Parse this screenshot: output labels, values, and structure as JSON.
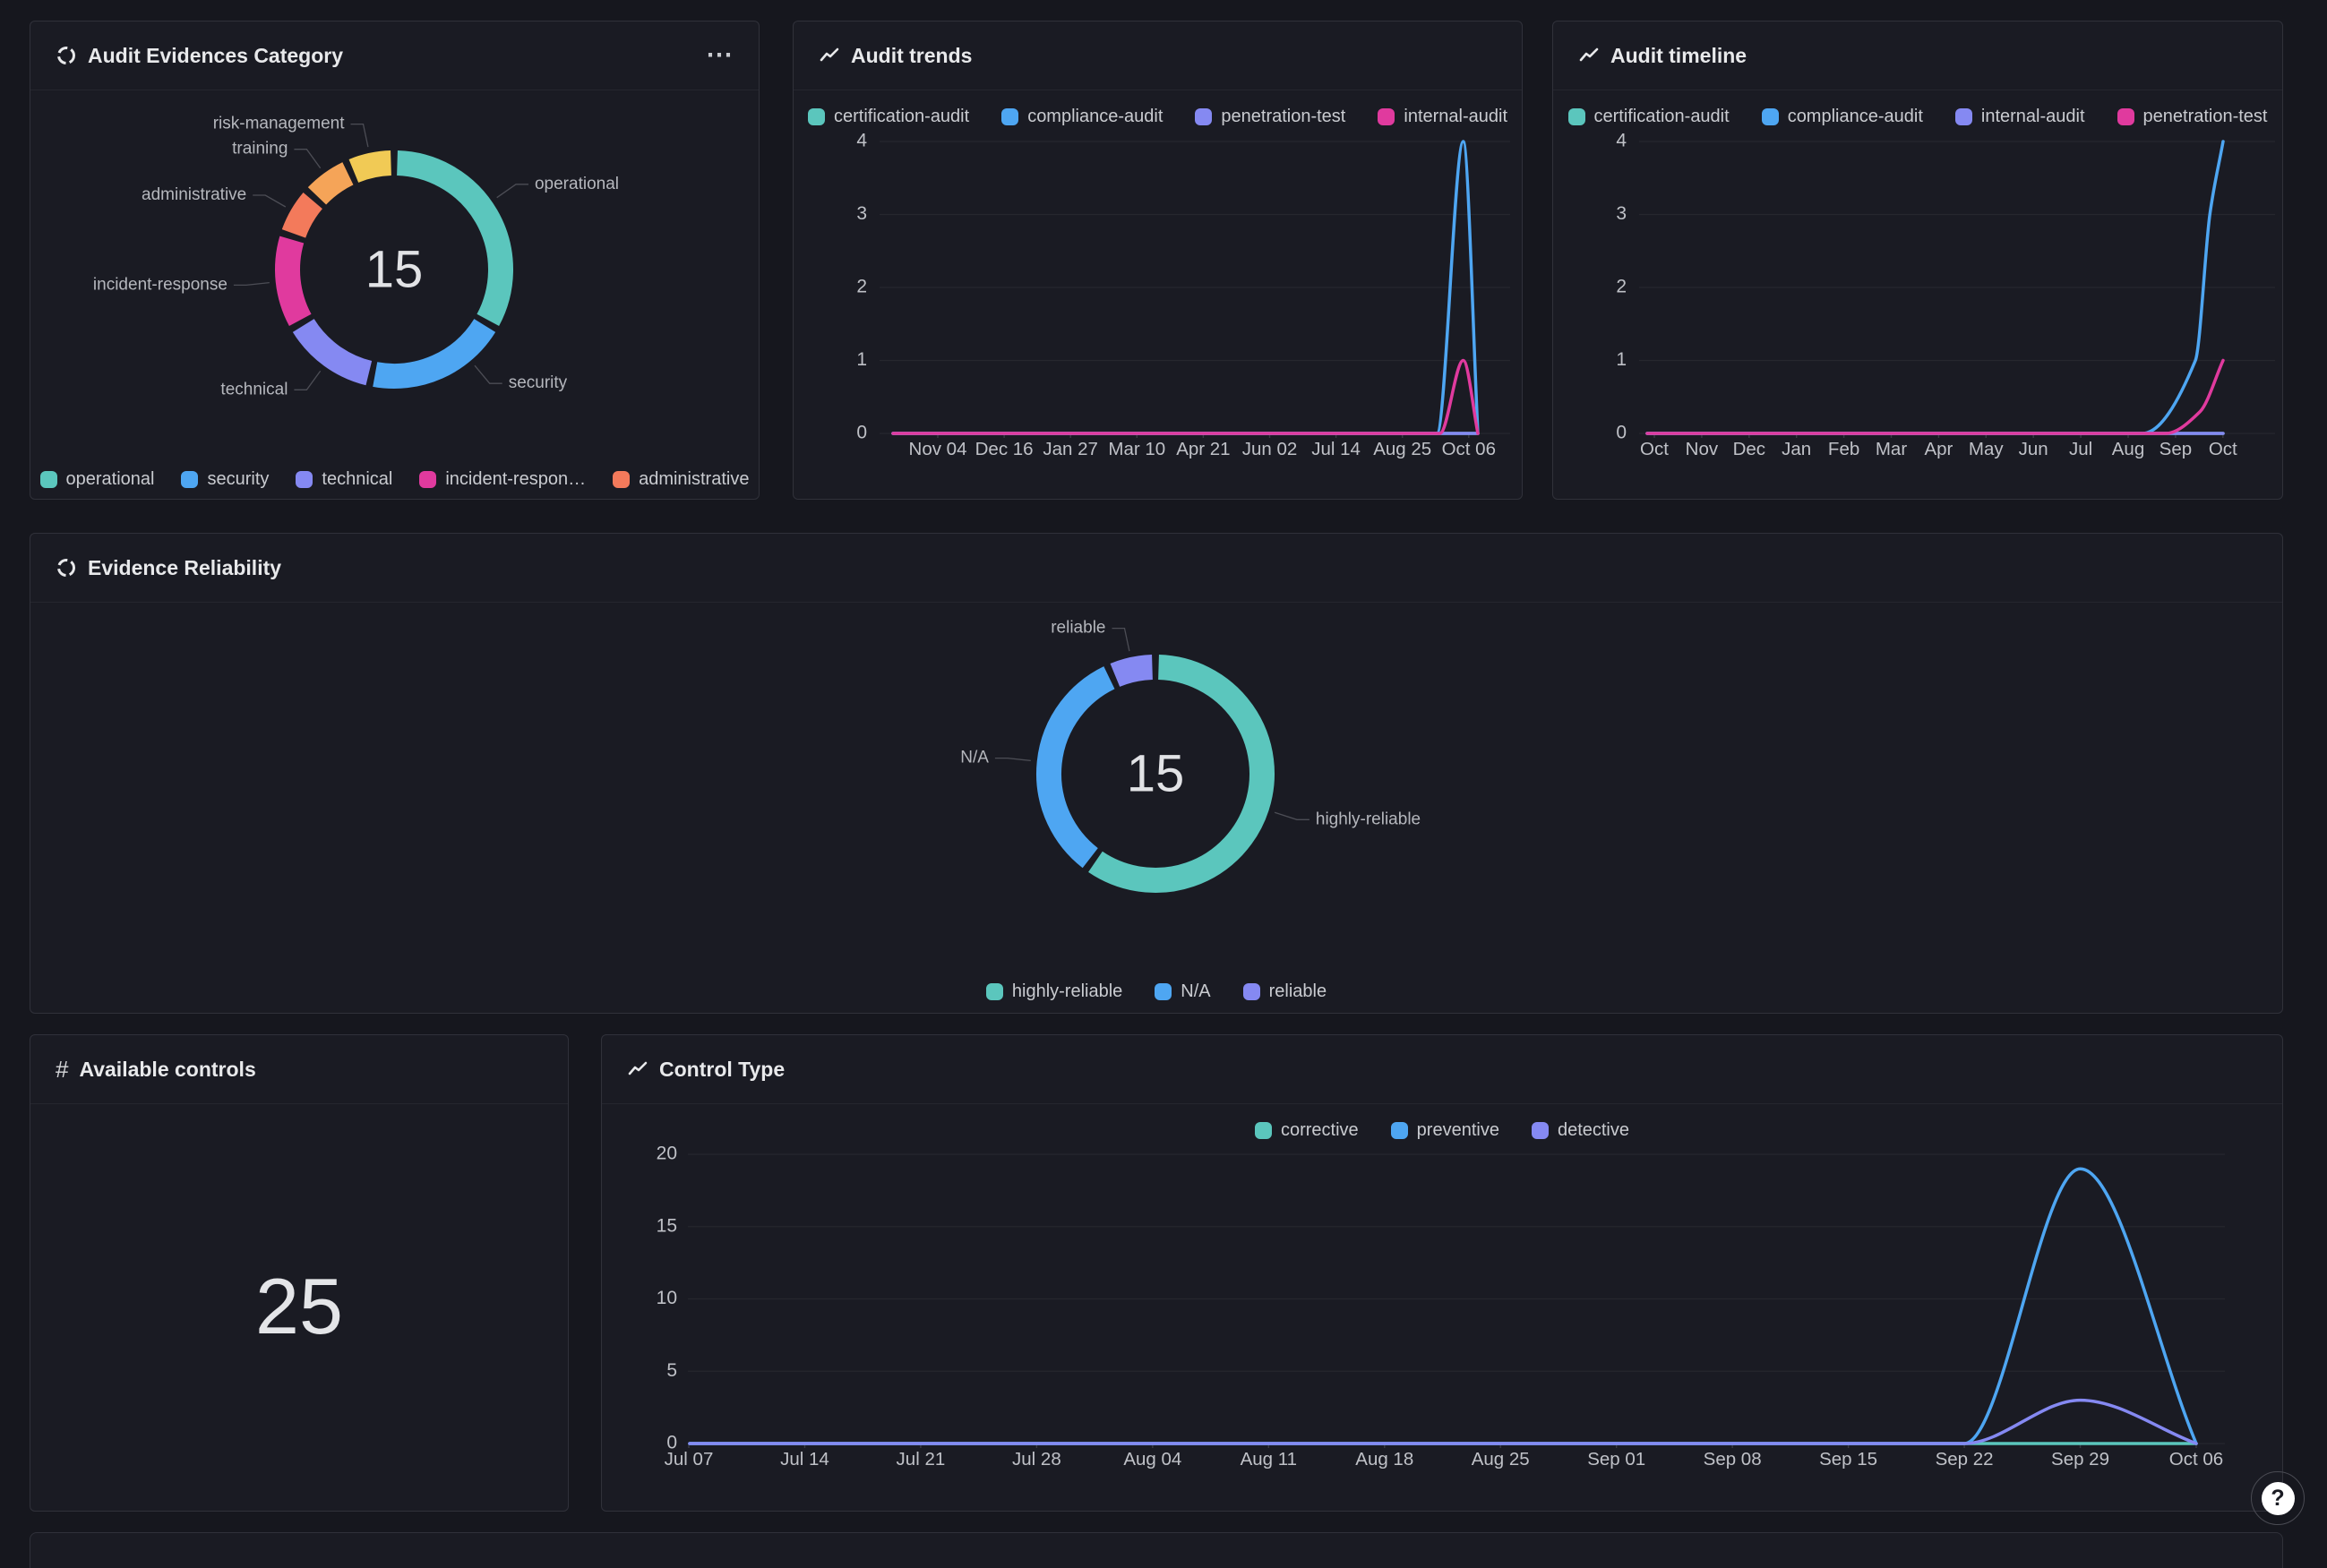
{
  "page": {
    "background": "#16171E",
    "help_icon": "?"
  },
  "colors": {
    "teal": "#5BC6BD",
    "blue": "#4EA6F2",
    "purple": "#8589F2",
    "magenta": "#E03A9E",
    "orangered": "#F37A5B",
    "orange": "#F5A458",
    "yellow": "#F1CA55",
    "grid": "#26272E",
    "axis_label": "#BFC1C7",
    "donut_label": "#B5B7BD",
    "leader_line": "#4C4D55",
    "title": "#E8E9EB",
    "value_text": "#E2E3E6"
  },
  "panels": {
    "audit_evidences_category": {
      "title": "Audit Evidences Category",
      "menu_icon": "⋯"
    },
    "audit_trends": {
      "title": "Audit trends"
    },
    "audit_timeline": {
      "title": "Audit timeline"
    },
    "evidence_reliability": {
      "title": "Evidence Reliability"
    },
    "available_controls": {
      "title": "Available controls",
      "hash_icon": "#"
    },
    "control_type": {
      "title": "Control Type"
    }
  },
  "chart_data": [
    {
      "id": "audit-evidences-category",
      "type": "pie",
      "title": "Audit Evidences Category",
      "total": "15",
      "slices": [
        {
          "label": "operational",
          "value": 5,
          "color": "#5BC6BD"
        },
        {
          "label": "security",
          "value": 3,
          "color": "#4EA6F2"
        },
        {
          "label": "technical",
          "value": 2,
          "color": "#8589F2"
        },
        {
          "label": "incident-response",
          "value": 2,
          "color": "#E03A9E"
        },
        {
          "label": "administrative",
          "value": 1,
          "color": "#F37A5B"
        },
        {
          "label": "training",
          "value": 1,
          "color": "#F5A458"
        },
        {
          "label": "risk-management",
          "value": 1,
          "color": "#F1CA55"
        }
      ],
      "legend": [
        {
          "label": "operational",
          "color": "#5BC6BD"
        },
        {
          "label": "security",
          "color": "#4EA6F2"
        },
        {
          "label": "technical",
          "color": "#8589F2"
        },
        {
          "label": "incident-respon…",
          "color": "#E03A9E"
        },
        {
          "label": "administrative",
          "color": "#F37A5B"
        }
      ]
    },
    {
      "id": "audit-trends",
      "type": "line",
      "title": "Audit trends",
      "x_ticks": [
        "Nov 04",
        "Dec 16",
        "Jan 27",
        "Mar 10",
        "Apr 21",
        "Jun 02",
        "Jul 14",
        "Aug 25",
        "Oct 06"
      ],
      "y_ticks": [
        0,
        1,
        2,
        3,
        4
      ],
      "ylim": [
        0,
        4
      ],
      "legend": [
        {
          "label": "certification-audit",
          "color": "#5BC6BD"
        },
        {
          "label": "compliance-audit",
          "color": "#4EA6F2"
        },
        {
          "label": "penetration-test",
          "color": "#8589F2"
        },
        {
          "label": "internal-audit",
          "color": "#E03A9E"
        }
      ],
      "series": [
        {
          "name": "certification-audit",
          "color": "#5BC6BD",
          "points": [
            [
              0,
              0
            ],
            [
              1,
              0
            ]
          ]
        },
        {
          "name": "compliance-audit",
          "color": "#4EA6F2",
          "points": [
            [
              0,
              0
            ],
            [
              0.93,
              0
            ],
            [
              0.975,
              4
            ],
            [
              1,
              0
            ]
          ]
        },
        {
          "name": "penetration-test",
          "color": "#8589F2",
          "points": [
            [
              0,
              0
            ],
            [
              1,
              0
            ]
          ]
        },
        {
          "name": "internal-audit",
          "color": "#E03A9E",
          "points": [
            [
              0,
              0
            ],
            [
              0.935,
              0
            ],
            [
              0.975,
              1
            ],
            [
              1,
              0
            ]
          ]
        }
      ],
      "note": "all series flat at 0; compliance-audit spikes to 4 and internal-audit to 1 just before Oct 06"
    },
    {
      "id": "audit-timeline",
      "type": "line",
      "title": "Audit timeline",
      "x_ticks": [
        "Oct",
        "Nov",
        "Dec",
        "Jan",
        "Feb",
        "Mar",
        "Apr",
        "May",
        "Jun",
        "Jul",
        "Aug",
        "Sep",
        "Oct"
      ],
      "y_ticks": [
        0,
        1,
        2,
        3,
        4
      ],
      "ylim": [
        0,
        4
      ],
      "legend": [
        {
          "label": "certification-audit",
          "color": "#5BC6BD"
        },
        {
          "label": "compliance-audit",
          "color": "#4EA6F2"
        },
        {
          "label": "internal-audit",
          "color": "#8589F2"
        },
        {
          "label": "penetration-test",
          "color": "#E03A9E"
        }
      ],
      "series": [
        {
          "name": "certification-audit",
          "color": "#5BC6BD",
          "points": [
            [
              0,
              0
            ],
            [
              1,
              0
            ]
          ]
        },
        {
          "name": "internal-audit",
          "color": "#8589F2",
          "points": [
            [
              0,
              0
            ],
            [
              1,
              0
            ]
          ]
        },
        {
          "name": "compliance-audit",
          "color": "#4EA6F2",
          "points": [
            [
              0,
              0
            ],
            [
              0.86,
              0
            ],
            [
              0.952,
              1
            ],
            [
              0.977,
              3
            ],
            [
              1,
              4
            ]
          ]
        },
        {
          "name": "penetration-test",
          "color": "#E03A9E",
          "points": [
            [
              0,
              0
            ],
            [
              0.9,
              0
            ],
            [
              0.96,
              0.3
            ],
            [
              1,
              1
            ]
          ]
        }
      ],
      "note": "flat at 0 from Oct to Sep, then compliance-audit rises to 4 and penetration-test to 1 at final Oct"
    },
    {
      "id": "evidence-reliability",
      "type": "pie",
      "title": "Evidence Reliability",
      "total": "15",
      "slices": [
        {
          "label": "highly-reliable",
          "value": 9,
          "color": "#5BC6BD"
        },
        {
          "label": "N/A",
          "value": 5,
          "color": "#4EA6F2"
        },
        {
          "label": "reliable",
          "value": 1,
          "color": "#8589F2"
        }
      ],
      "legend": [
        {
          "label": "highly-reliable",
          "color": "#5BC6BD"
        },
        {
          "label": "N/A",
          "color": "#4EA6F2"
        },
        {
          "label": "reliable",
          "color": "#8589F2"
        }
      ]
    },
    {
      "id": "available-controls",
      "type": "stat",
      "title": "Available controls",
      "value": "25"
    },
    {
      "id": "control-type",
      "type": "line",
      "title": "Control Type",
      "x_ticks": [
        "Jul 07",
        "Jul 14",
        "Jul 21",
        "Jul 28",
        "Aug 04",
        "Aug 11",
        "Aug 18",
        "Aug 25",
        "Sep 01",
        "Sep 08",
        "Sep 15",
        "Sep 22",
        "Sep 29",
        "Oct 06"
      ],
      "y_ticks": [
        0,
        5,
        10,
        15,
        20
      ],
      "ylim": [
        0,
        20
      ],
      "legend": [
        {
          "label": "corrective",
          "color": "#5BC6BD"
        },
        {
          "label": "preventive",
          "color": "#4EA6F2"
        },
        {
          "label": "detective",
          "color": "#8589F2"
        }
      ],
      "series": [
        {
          "name": "corrective",
          "color": "#5BC6BD",
          "points": [
            [
              0,
              0
            ],
            [
              1,
              0
            ]
          ]
        },
        {
          "name": "preventive",
          "color": "#4EA6F2",
          "points": [
            [
              0,
              0
            ],
            [
              0.8,
              0
            ],
            [
              0.846,
              0
            ],
            [
              0.923,
              19
            ],
            [
              1,
              0
            ]
          ]
        },
        {
          "name": "detective",
          "color": "#8589F2",
          "points": [
            [
              0,
              0
            ],
            [
              0.8,
              0
            ],
            [
              0.846,
              0
            ],
            [
              0.923,
              3
            ],
            [
              1,
              0
            ]
          ]
        }
      ],
      "note": "flat at 0 until Sep 22; preventive peaks at 19 and detective at 3 around Sep 29, back to 0 at Oct 06"
    }
  ]
}
